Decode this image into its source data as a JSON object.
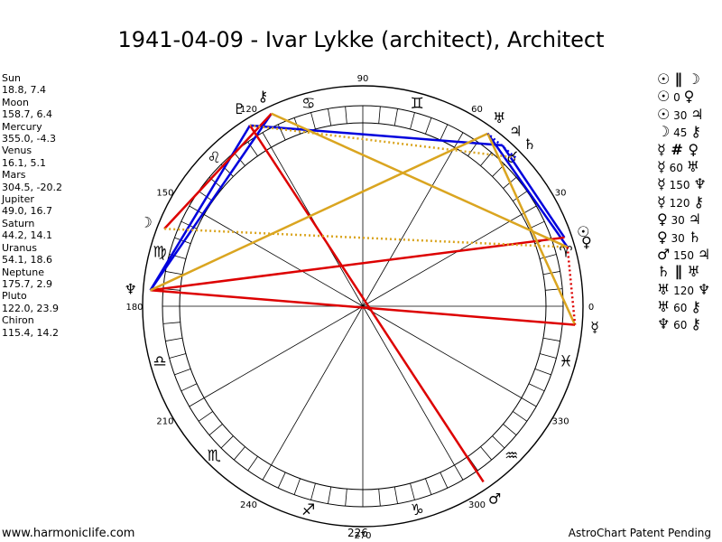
{
  "title": "1941-04-09 - Ivar Lykke (architect), Architect",
  "planets": [
    {
      "name": "Sun",
      "coords": "18.8, 7.4",
      "glyph": "☉",
      "lon": 18.8,
      "color": "#000000"
    },
    {
      "name": "Moon",
      "coords": "158.7, 6.4",
      "glyph": "☽",
      "lon": 158.7,
      "color": "#000000"
    },
    {
      "name": "Mercury",
      "coords": "355.0, -4.3",
      "glyph": "☿",
      "lon": 355.0,
      "color": "#000000"
    },
    {
      "name": "Venus",
      "coords": "16.1, 5.1",
      "glyph": "♀",
      "lon": 16.1,
      "color": "#000000"
    },
    {
      "name": "Mars",
      "coords": "304.5, -20.2",
      "glyph": "♂",
      "lon": 304.5,
      "color": "#000000"
    },
    {
      "name": "Jupiter",
      "coords": "49.0, 16.7",
      "glyph": "♃",
      "lon": 49.0,
      "color": "#000000"
    },
    {
      "name": "Saturn",
      "coords": "44.2, 14.1",
      "glyph": "♄",
      "lon": 44.2,
      "color": "#000000"
    },
    {
      "name": "Uranus",
      "coords": "54.1, 18.6",
      "glyph": "♅",
      "lon": 54.1,
      "color": "#000000"
    },
    {
      "name": "Neptune",
      "coords": "175.7, 2.9",
      "glyph": "♆",
      "lon": 175.7,
      "color": "#000000"
    },
    {
      "name": "Pluto",
      "coords": "122.0, 23.9",
      "glyph": "♇",
      "lon": 122.0,
      "color": "#000000"
    },
    {
      "name": "Chiron",
      "coords": "115.4, 14.2",
      "glyph": "⚷",
      "lon": 115.4,
      "color": "#000000"
    }
  ],
  "aspects": [
    {
      "p1": "☉",
      "asp": "∥",
      "p2": "☽"
    },
    {
      "p1": "☉",
      "asp": "0",
      "p2": "♀"
    },
    {
      "p1": "☉",
      "asp": "30",
      "p2": "♃"
    },
    {
      "p1": "☽",
      "asp": "45",
      "p2": "⚷"
    },
    {
      "p1": "☿",
      "asp": "#",
      "p2": "♀"
    },
    {
      "p1": "☿",
      "asp": "60",
      "p2": "♅"
    },
    {
      "p1": "☿",
      "asp": "150",
      "p2": "♆"
    },
    {
      "p1": "☿",
      "asp": "120",
      "p2": "⚷"
    },
    {
      "p1": "♀",
      "asp": "30",
      "p2": "♃"
    },
    {
      "p1": "♀",
      "asp": "30",
      "p2": "♄"
    },
    {
      "p1": "♂",
      "asp": "150",
      "p2": "♃"
    },
    {
      "p1": "♄",
      "asp": "∥",
      "p2": "♅"
    },
    {
      "p1": "♅",
      "asp": "120",
      "p2": "♆"
    },
    {
      "p1": "♅",
      "asp": "60",
      "p2": "⚷"
    },
    {
      "p1": "♆",
      "asp": "60",
      "p2": "⚷"
    }
  ],
  "degree_labels": [
    {
      "deg": 0,
      "text": "0"
    },
    {
      "deg": 30,
      "text": "30"
    },
    {
      "deg": 60,
      "text": "60"
    },
    {
      "deg": 90,
      "text": "90"
    },
    {
      "deg": 120,
      "text": "120"
    },
    {
      "deg": 150,
      "text": "150"
    },
    {
      "deg": 180,
      "text": "180"
    },
    {
      "deg": 210,
      "text": "210"
    },
    {
      "deg": 240,
      "text": "240"
    },
    {
      "deg": 270,
      "text": "270"
    },
    {
      "deg": 300,
      "text": "300"
    },
    {
      "deg": 330,
      "text": "330"
    }
  ],
  "signs": [
    "♈",
    "♉",
    "♊",
    "♋",
    "♌",
    "♍",
    "♎",
    "♏",
    "♐",
    "♑",
    "♒",
    "♓"
  ],
  "aspect_lines": [
    {
      "a": 18.8,
      "b": 49.0,
      "color": "#0000dd"
    },
    {
      "a": 49.0,
      "b": 122.0,
      "color": "#0000dd"
    },
    {
      "a": 122.0,
      "b": 175.7,
      "color": "#0000dd"
    },
    {
      "a": 16.1,
      "b": 54.1,
      "color": "#0000dd"
    },
    {
      "a": 115.4,
      "b": 175.7,
      "color": "#0000dd"
    },
    {
      "a": 158.7,
      "b": 115.4,
      "color": "#dd0000"
    },
    {
      "a": 175.7,
      "b": 355.0,
      "color": "#dd0000"
    },
    {
      "a": 304.5,
      "b": 122.0,
      "color": "#dd0000"
    },
    {
      "a": 18.8,
      "b": 175.7,
      "color": "#dd0000"
    },
    {
      "a": 355.0,
      "b": 54.1,
      "color": "#daa520"
    },
    {
      "a": 16.1,
      "b": 115.4,
      "color": "#daa520"
    },
    {
      "a": 175.7,
      "b": 54.1,
      "color": "#daa520"
    }
  ],
  "dotted_lines": [
    {
      "a": 16.1,
      "b": 158.7,
      "color": "#daa520"
    },
    {
      "a": 44.2,
      "b": 122.0,
      "color": "#daa520"
    },
    {
      "a": 16.1,
      "b": 355.0,
      "color": "#dd0000"
    },
    {
      "a": 44.2,
      "b": 54.1,
      "color": "#0000dd"
    }
  ],
  "footer_left": "www.harmoniclife.com",
  "footer_mid": "226",
  "footer_right": "AstroChart Patent Pending"
}
